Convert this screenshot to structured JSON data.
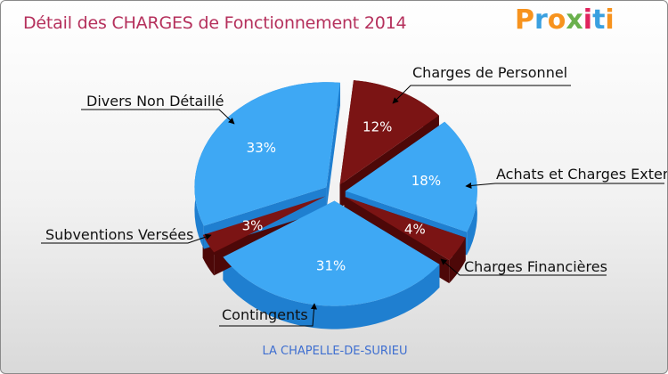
{
  "title": "Détail des CHARGES de Fonctionnement 2014",
  "logo": {
    "text": "Proxiti",
    "colors": [
      "#f7931e",
      "#3aa0e0",
      "#f7931e",
      "#6ab04c",
      "#e0245e",
      "#3aa0e0",
      "#f7931e"
    ]
  },
  "footer": "LA CHAPELLE-DE-SURIEU",
  "colors": {
    "blue": "#3ea8f4",
    "blue_dark": "#1f7fd0",
    "red": "#7b1414",
    "red_dark": "#4d0808"
  },
  "chart_data": {
    "type": "pie",
    "title": "Détail des CHARGES de Fonctionnement 2014",
    "slices": [
      {
        "label": "Charges de Personnel",
        "value": 12,
        "pct_label": "12%",
        "color": "#7b1414"
      },
      {
        "label": "Achats et Charges Externes",
        "value": 18,
        "pct_label": "18%",
        "color": "#3ea8f4"
      },
      {
        "label": "Charges Financières",
        "value": 4,
        "pct_label": "4%",
        "color": "#7b1414"
      },
      {
        "label": "Contingents",
        "value": 31,
        "pct_label": "31%",
        "color": "#3ea8f4"
      },
      {
        "label": "Subventions Versées",
        "value": 3,
        "pct_label": "3%",
        "color": "#7b1414"
      },
      {
        "label": "Divers Non Détaillé",
        "value": 33,
        "pct_label": "33%",
        "color": "#3ea8f4"
      }
    ]
  }
}
